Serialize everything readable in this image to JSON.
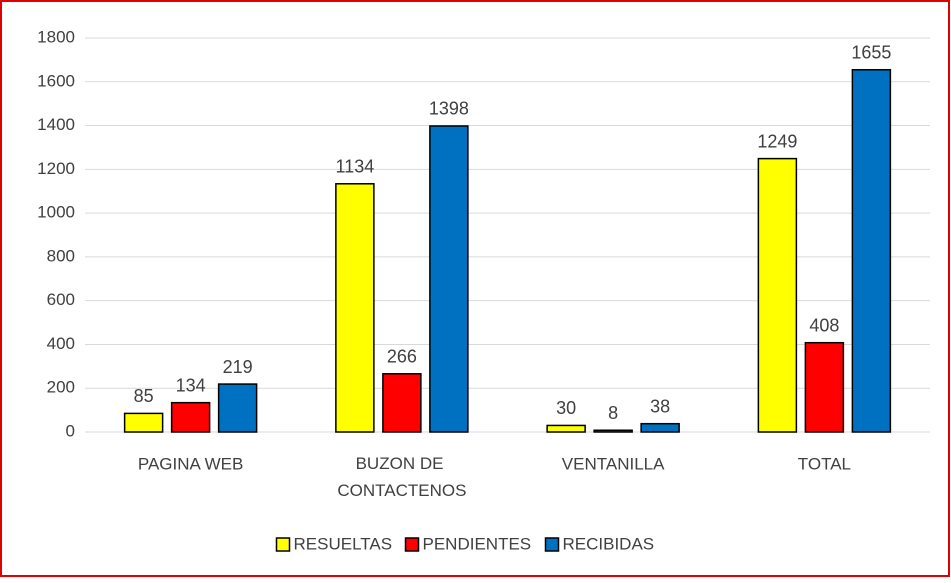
{
  "chart_data": {
    "type": "bar",
    "categories": [
      "PAGINA WEB",
      "BUZON DE CONTACTENOS",
      "VENTANILLA",
      "TOTAL"
    ],
    "series": [
      {
        "name": "RESUELTAS",
        "color": "#ffff00",
        "values": [
          85,
          1134,
          30,
          1249
        ]
      },
      {
        "name": "PENDIENTES",
        "color": "#ff0000",
        "values": [
          134,
          266,
          8,
          408
        ]
      },
      {
        "name": "RECIBIDAS",
        "color": "#0070c0",
        "values": [
          219,
          1398,
          38,
          1655
        ]
      }
    ],
    "ylim": [
      0,
      1800
    ],
    "yticks": [
      0,
      200,
      400,
      600,
      800,
      1000,
      1200,
      1400,
      1600,
      1800
    ],
    "grid": true,
    "legend": "bottom"
  }
}
